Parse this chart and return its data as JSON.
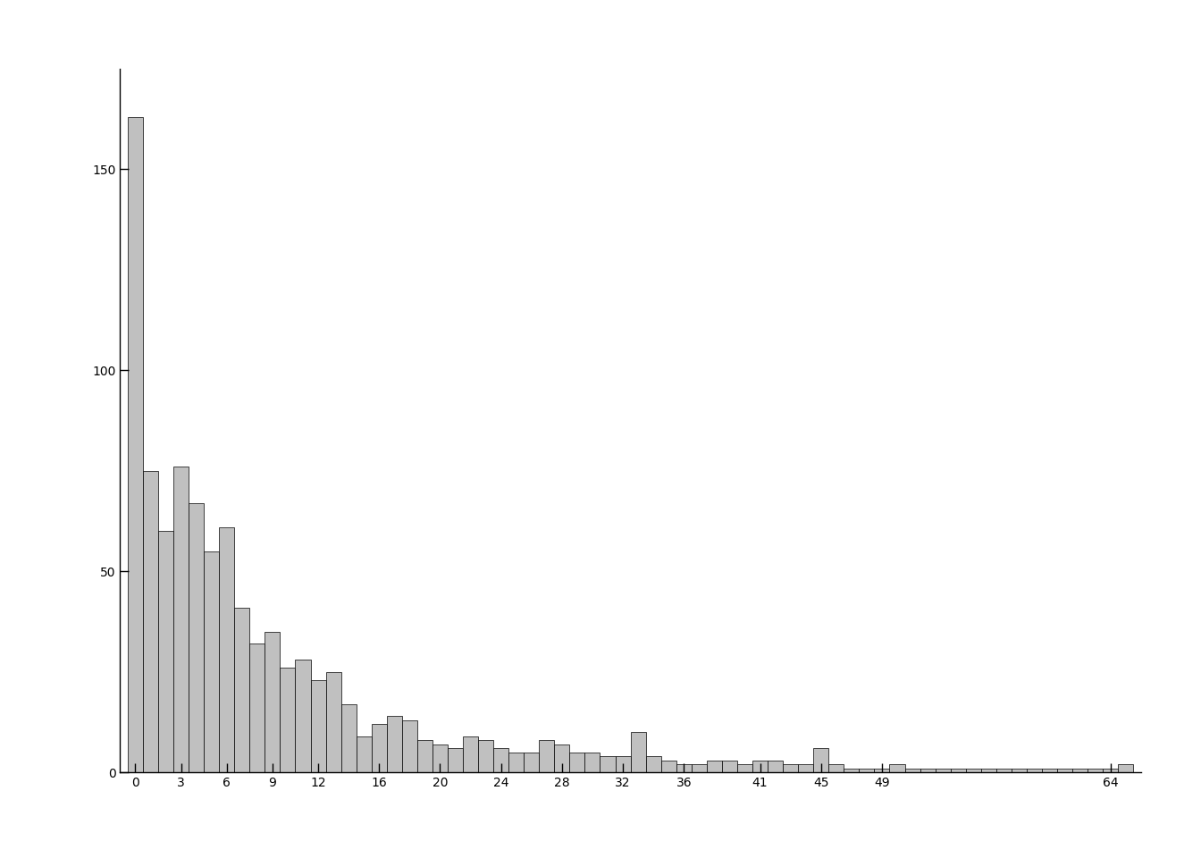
{
  "counts": [
    163,
    75,
    60,
    76,
    67,
    55,
    61,
    41,
    32,
    35,
    26,
    28,
    23,
    25,
    17,
    9,
    12,
    14,
    13,
    8,
    7,
    6,
    9,
    8,
    6,
    5,
    5,
    8,
    7,
    5,
    5,
    4,
    4,
    10,
    4,
    3,
    2,
    2,
    3,
    3,
    2,
    3,
    3,
    2,
    2,
    6,
    2,
    1,
    1,
    1,
    2,
    1,
    1,
    1,
    1,
    1,
    1,
    1,
    1,
    1,
    1,
    1,
    1,
    1,
    1,
    2
  ],
  "xtick_positions": [
    0,
    3,
    6,
    9,
    12,
    16,
    20,
    24,
    28,
    32,
    36,
    41,
    45,
    49,
    64
  ],
  "xtick_labels": [
    "0",
    "3",
    "6",
    "9",
    "12",
    "16",
    "20",
    "24",
    "28",
    "32",
    "36",
    "41",
    "45",
    "49",
    "64"
  ],
  "ytick_positions": [
    0,
    50,
    100,
    150
  ],
  "ytick_labels": [
    "0",
    "50",
    "100",
    "150"
  ],
  "bar_color": "#c0c0c0",
  "bar_edge_color": "#000000",
  "background_color": "#ffffff",
  "ylim": [
    0,
    175
  ],
  "bar_width": 1.0
}
